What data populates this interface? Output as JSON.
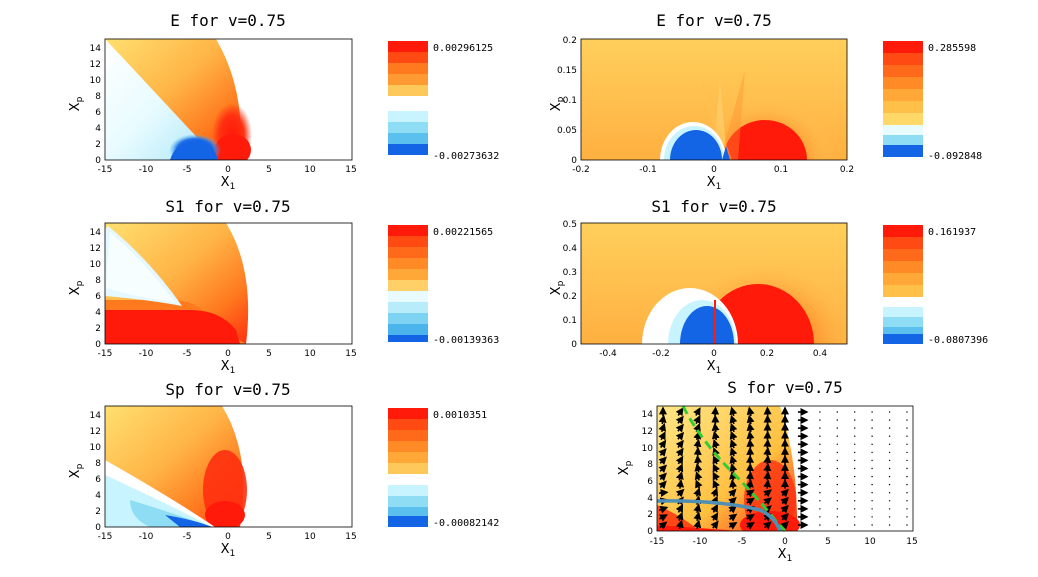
{
  "chart_data": [
    {
      "type": "heatmap",
      "title": "E for v=0.75",
      "xlabel": "X1",
      "ylabel": "Xp",
      "xlim": [
        -15,
        15
      ],
      "ylim": [
        0,
        15
      ],
      "xticks": [
        "-15",
        "-10",
        "-5",
        "0",
        "5",
        "10",
        "15"
      ],
      "yticks": [
        "0",
        "2",
        "4",
        "6",
        "8",
        "10",
        "12",
        "14"
      ],
      "colorbar": {
        "max": "0.00296125",
        "min": "-0.00273632"
      }
    },
    {
      "type": "heatmap",
      "title": "E for v=0.75",
      "xlabel": "X1",
      "ylabel": "Xp",
      "xlim": [
        -0.2,
        0.2
      ],
      "ylim": [
        0,
        0.2
      ],
      "xticks": [
        "-0.2",
        "-0.1",
        "0",
        "0.1",
        "0.2"
      ],
      "yticks": [
        "0",
        "0.05",
        "0.1",
        "0.15",
        "0.2"
      ],
      "colorbar": {
        "max": "0.285598",
        "min": "-0.092848"
      }
    },
    {
      "type": "heatmap",
      "title": "S1 for v=0.75",
      "xlabel": "X1",
      "ylabel": "Xp",
      "xlim": [
        -15,
        15
      ],
      "ylim": [
        0,
        15
      ],
      "xticks": [
        "-15",
        "-10",
        "-5",
        "0",
        "5",
        "10",
        "15"
      ],
      "yticks": [
        "0",
        "2",
        "4",
        "6",
        "8",
        "10",
        "12",
        "14"
      ],
      "colorbar": {
        "max": "0.00221565",
        "min": "-0.00139363"
      }
    },
    {
      "type": "heatmap",
      "title": "S1 for v=0.75",
      "xlabel": "X1",
      "ylabel": "Xp",
      "xlim": [
        -0.5,
        0.5
      ],
      "ylim": [
        0,
        0.5
      ],
      "xticks": [
        "-0.4",
        "-0.2",
        "0",
        "0.2",
        "0.4"
      ],
      "yticks": [
        "0",
        "0.1",
        "0.2",
        "0.3",
        "0.4",
        "0.5"
      ],
      "colorbar": {
        "max": "0.161937",
        "min": "-0.0807396"
      }
    },
    {
      "type": "heatmap",
      "title": "Sp for v=0.75",
      "xlabel": "X1",
      "ylabel": "Xp",
      "xlim": [
        -15,
        15
      ],
      "ylim": [
        0,
        15
      ],
      "xticks": [
        "-15",
        "-10",
        "-5",
        "0",
        "5",
        "10",
        "15"
      ],
      "yticks": [
        "0",
        "2",
        "4",
        "6",
        "8",
        "10",
        "12",
        "14"
      ],
      "colorbar": {
        "max": "0.0010351",
        "min": "-0.00082142"
      }
    },
    {
      "type": "heatmap",
      "title": "S for v=0.75",
      "xlabel": "X1",
      "ylabel": "Xp",
      "xlim": [
        -15,
        15
      ],
      "ylim": [
        0,
        15
      ],
      "xticks": [
        "-15",
        "-10",
        "-5",
        "0",
        "5",
        "10",
        "15"
      ],
      "yticks": [
        "0",
        "2",
        "4",
        "6",
        "8",
        "10",
        "12",
        "14"
      ]
    }
  ],
  "colors": {
    "strong_red": "#ff1a0a",
    "orange": "#ff7a1e",
    "light_orange": "#ffb446",
    "yellow": "#ffe070",
    "pale_cyan": "#c8f4ff",
    "light_blue": "#8fdcf5",
    "mid_blue": "#5cc0ee",
    "deep_blue": "#1464e6",
    "green_dash": "#33cc33",
    "steel_blue": "#4f8fb5"
  }
}
